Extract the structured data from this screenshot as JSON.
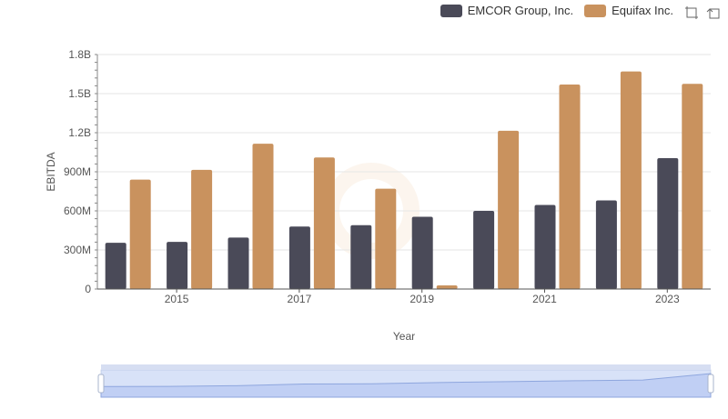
{
  "legend": [
    {
      "name": "EMCOR Group, Inc.",
      "color": "#4a4a58"
    },
    {
      "name": "Equifax Inc.",
      "color": "#c9925e"
    }
  ],
  "toolbox": {
    "zoom_icon": "zoom-select-icon",
    "restore_icon": "restore-icon"
  },
  "chart_data": {
    "type": "bar",
    "categories": [
      "2014",
      "2015",
      "2016",
      "2017",
      "2018",
      "2019",
      "2020",
      "2021",
      "2022",
      "2023"
    ],
    "xtick_labels": [
      "2015",
      "2017",
      "2019",
      "2021",
      "2023"
    ],
    "xlabel": "Year",
    "ylabel": "EBITDA",
    "ylim": [
      0,
      1800000000
    ],
    "yticks": [
      0,
      300000000,
      600000000,
      900000000,
      1200000000,
      1500000000,
      1800000000
    ],
    "ytick_labels": [
      "0",
      "300M",
      "600M",
      "900M",
      "1.2B",
      "1.5B",
      "1.8B"
    ],
    "series": [
      {
        "name": "EMCOR Group, Inc.",
        "color": "#4a4a58",
        "values": [
          355000000,
          362000000,
          395000000,
          480000000,
          490000000,
          555000000,
          600000000,
          645000000,
          680000000,
          1005000000
        ]
      },
      {
        "name": "Equifax Inc.",
        "color": "#c9925e",
        "values": [
          840000000,
          915000000,
          1115000000,
          1010000000,
          770000000,
          28000000,
          1215000000,
          1570000000,
          1670000000,
          1575000000
        ]
      }
    ],
    "grid": true,
    "legend_position": "top-right",
    "datazoom": {
      "start": 0,
      "end": 1
    }
  }
}
